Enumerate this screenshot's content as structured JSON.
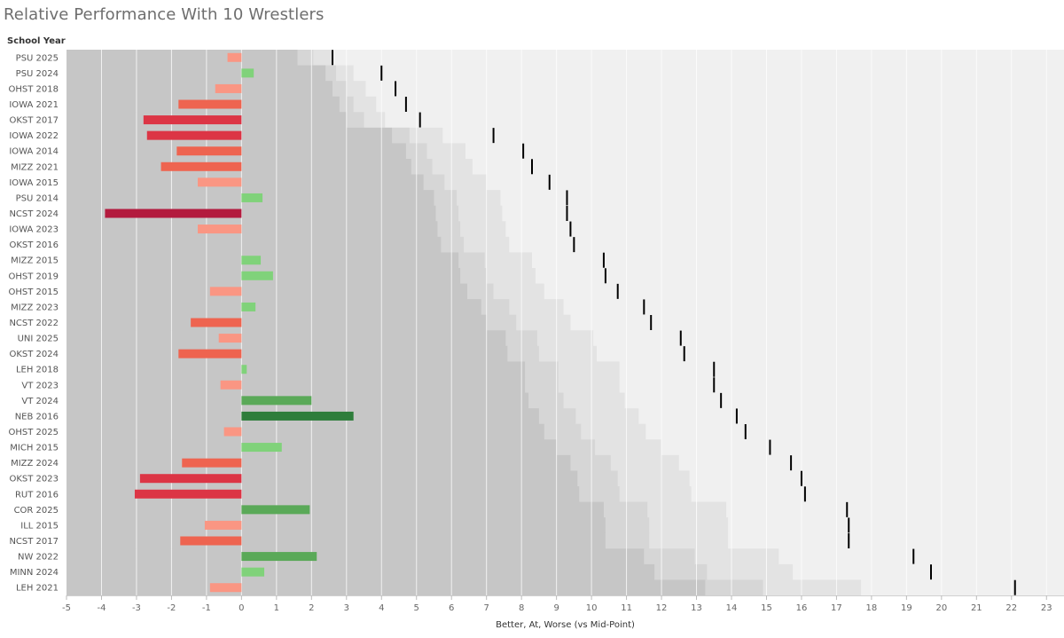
{
  "title": "Relative Performance With 10 Wrestlers",
  "row_header": "School Year",
  "chart_data": {
    "type": "bar",
    "title": "Relative Performance With 10 Wrestlers",
    "xlabel": "Better, At, Worse (vs Mid-Point)",
    "ylabel": "School Year",
    "xlim": [
      -5,
      23.5
    ],
    "xticks": [
      -5,
      -4,
      -3,
      -2,
      -1,
      0,
      1,
      2,
      3,
      4,
      5,
      6,
      7,
      8,
      9,
      10,
      11,
      12,
      13,
      14,
      15,
      16,
      17,
      18,
      19,
      20,
      21,
      22,
      23
    ],
    "grid": true,
    "colors": {
      "strong_negative": "#b31b3e",
      "negative": "#dc3545",
      "moderate_negative": "#ee6450",
      "mild_negative": "#fa9683",
      "mild_positive": "#80d27a",
      "positive": "#5aa958",
      "strong_positive": "#2e7d3b",
      "band_dark": "#c6c6c6",
      "band_mid": "#d6d6d6",
      "band_light": "#e3e3e3",
      "background": "#f0f0f0",
      "marker": "#000000"
    },
    "categories": [
      "PSU 2025",
      "PSU 2024",
      "OHST 2018",
      "IOWA 2021",
      "OKST 2017",
      "IOWA 2022",
      "IOWA 2014",
      "MIZZ 2021",
      "IOWA 2015",
      "PSU 2014",
      "NCST 2024",
      "IOWA 2023",
      "OKST 2016",
      "MIZZ 2015",
      "OHST 2019",
      "OHST 2015",
      "MIZZ 2023",
      "NCST 2022",
      "UNI 2025",
      "OKST 2024",
      "LEH 2018",
      "VT 2023",
      "VT 2024",
      "NEB 2016",
      "OHST 2025",
      "MICH 2015",
      "MIZZ 2024",
      "OKST 2023",
      "RUT 2016",
      "COR 2025",
      "ILL 2015",
      "NCST 2017",
      "NW 2022",
      "MINN 2024",
      "LEH 2021"
    ],
    "series": [
      {
        "name": "Better, At, Worse (vs Mid-Point)",
        "values": [
          -0.4,
          0.35,
          -0.75,
          -1.8,
          -2.8,
          -2.7,
          -1.85,
          -2.3,
          -1.25,
          0.6,
          -3.9,
          -1.25,
          0,
          0.55,
          0.9,
          -0.9,
          0.4,
          -1.45,
          -0.65,
          -1.8,
          0.15,
          -0.6,
          2.0,
          3.2,
          -0.5,
          1.15,
          -1.7,
          -2.9,
          -3.05,
          1.95,
          -1.05,
          -1.75,
          2.15,
          0.65,
          -0.9
        ]
      },
      {
        "name": "Marker",
        "values": [
          2.6,
          4.0,
          4.4,
          4.7,
          5.1,
          7.2,
          8.05,
          8.3,
          8.8,
          9.3,
          9.3,
          9.4,
          9.5,
          10.35,
          10.4,
          10.75,
          11.5,
          11.7,
          12.55,
          12.65,
          13.5,
          13.5,
          13.7,
          14.15,
          14.4,
          15.1,
          15.7,
          16.0,
          16.1,
          17.3,
          17.35,
          17.35,
          19.2,
          19.7,
          22.1
        ]
      },
      {
        "name": "Band 1",
        "values": [
          1.6,
          2.4,
          2.6,
          2.8,
          3.0,
          4.3,
          4.7,
          4.85,
          5.2,
          5.5,
          5.55,
          5.6,
          5.7,
          6.2,
          6.25,
          6.45,
          6.85,
          7.0,
          7.55,
          7.6,
          8.1,
          8.1,
          8.2,
          8.5,
          8.65,
          9.0,
          9.4,
          9.6,
          9.65,
          10.35,
          10.4,
          10.4,
          11.5,
          11.8,
          13.25
        ]
      },
      {
        "name": "Band 2",
        "values": [
          2.05,
          2.7,
          3.0,
          3.2,
          3.5,
          4.8,
          5.3,
          5.45,
          5.8,
          6.15,
          6.2,
          6.25,
          6.35,
          6.95,
          7.0,
          7.2,
          7.65,
          7.85,
          8.45,
          8.5,
          9.05,
          9.05,
          9.2,
          9.55,
          9.7,
          10.1,
          10.55,
          10.75,
          10.8,
          11.6,
          11.65,
          11.65,
          12.95,
          13.3,
          14.9
        ]
      },
      {
        "name": "Band 3",
        "values": [
          2.6,
          3.2,
          3.55,
          3.85,
          4.1,
          5.75,
          6.4,
          6.6,
          7.0,
          7.4,
          7.45,
          7.55,
          7.65,
          8.3,
          8.4,
          8.65,
          9.2,
          9.4,
          10.05,
          10.15,
          10.8,
          10.8,
          10.95,
          11.35,
          11.55,
          12.0,
          12.5,
          12.8,
          12.85,
          13.85,
          13.9,
          13.9,
          15.35,
          15.75,
          17.7
        ]
      }
    ]
  }
}
